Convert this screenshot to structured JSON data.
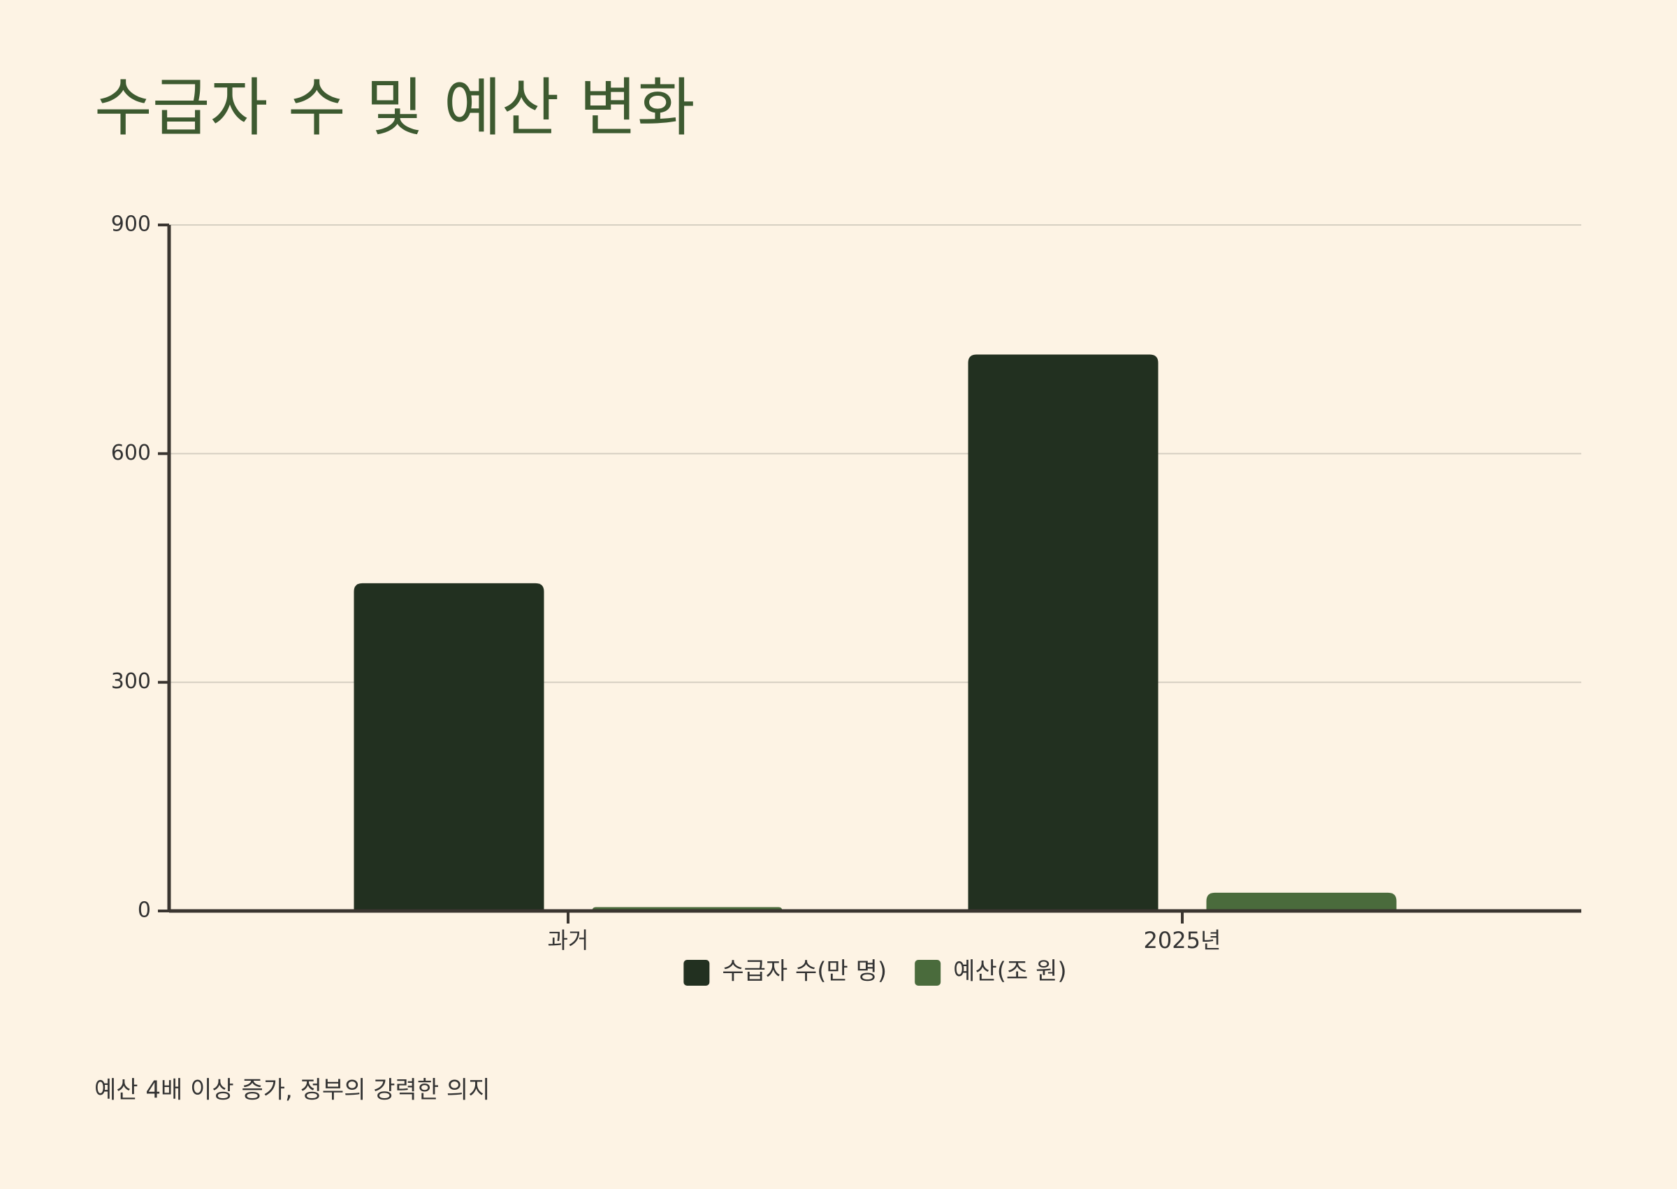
{
  "chart_data": {
    "type": "bar",
    "title": "수급자 수 및 예산 변화",
    "categories": [
      "과거",
      "2025년"
    ],
    "series": [
      {
        "name": "수급자 수(만 명)",
        "color": "#223020",
        "values": [
          430,
          730
        ]
      },
      {
        "name": "예산(조 원)",
        "color": "#4a6b3c",
        "values": [
          5,
          24
        ]
      }
    ],
    "ylim": [
      0,
      900
    ],
    "yticks": [
      0,
      300,
      600,
      900
    ],
    "grid": true,
    "legend": "bottom",
    "footnote": "예산 4배 이상 증가, 정부의 강력한 의지"
  }
}
